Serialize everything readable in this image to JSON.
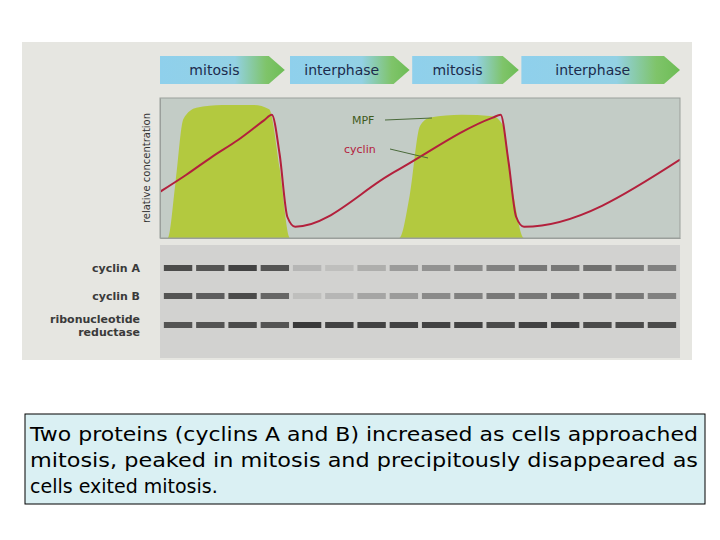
{
  "chart_data": {
    "type": "line",
    "ylabel": "relative concentration",
    "xlim": [
      0,
      100
    ],
    "ylim": [
      0,
      100
    ],
    "xticks": [],
    "yticks": [],
    "tick_labels": false,
    "grid": false,
    "series": [
      {
        "name": "MPF",
        "type": "area",
        "color": "#b3c93f",
        "x": [
          0,
          1.5,
          3,
          4.5,
          7,
          12,
          18,
          21,
          23,
          25,
          40,
          46,
          48,
          50,
          52,
          58,
          64,
          66,
          68,
          70,
          100
        ],
        "values": [
          0,
          0,
          40,
          85,
          93,
          95,
          95,
          92,
          50,
          0,
          0,
          0,
          30,
          80,
          86,
          88,
          87,
          80,
          30,
          0,
          0
        ]
      },
      {
        "name": "cyclin",
        "type": "line",
        "color": "#b3203c",
        "x": [
          0,
          5,
          10,
          15,
          20,
          21.5,
          23,
          24.5,
          26,
          45,
          64,
          65.5,
          67,
          68.5,
          70,
          100
        ],
        "values": [
          33,
          45,
          58,
          70,
          84,
          88,
          60,
          15,
          8,
          47,
          86,
          88,
          55,
          15,
          8,
          56
        ]
      }
    ],
    "phases": [
      {
        "label": "mitosis",
        "start": 0,
        "end": 24
      },
      {
        "label": "interphase",
        "start": 25,
        "end": 48
      },
      {
        "label": "mitosis",
        "start": 48.5,
        "end": 69
      },
      {
        "label": "interphase",
        "start": 69.5,
        "end": 100
      }
    ],
    "gel": {
      "rows": [
        {
          "label": [
            "cyclin A"
          ],
          "bands": [
            0.75,
            0.7,
            0.8,
            0.7,
            0.15,
            0.1,
            0.2,
            0.3,
            0.35,
            0.4,
            0.45,
            0.5,
            0.5,
            0.55,
            0.5,
            0.45
          ]
        },
        {
          "label": [
            "cyclin B"
          ],
          "bands": [
            0.7,
            0.65,
            0.75,
            0.6,
            0.1,
            0.15,
            0.25,
            0.3,
            0.4,
            0.45,
            0.5,
            0.5,
            0.55,
            0.55,
            0.5,
            0.45
          ]
        },
        {
          "label": [
            "ribonucleotide",
            "reductase"
          ],
          "bands": [
            0.7,
            0.7,
            0.75,
            0.7,
            0.85,
            0.8,
            0.8,
            0.8,
            0.8,
            0.8,
            0.75,
            0.8,
            0.8,
            0.75,
            0.75,
            0.75
          ]
        }
      ]
    },
    "caption": [
      "Two proteins (cyclins A and B) increased as cells approached",
      "mitosis, peaked in mitosis and precipitously disappeared  as",
      "cells exited mitosis."
    ]
  }
}
